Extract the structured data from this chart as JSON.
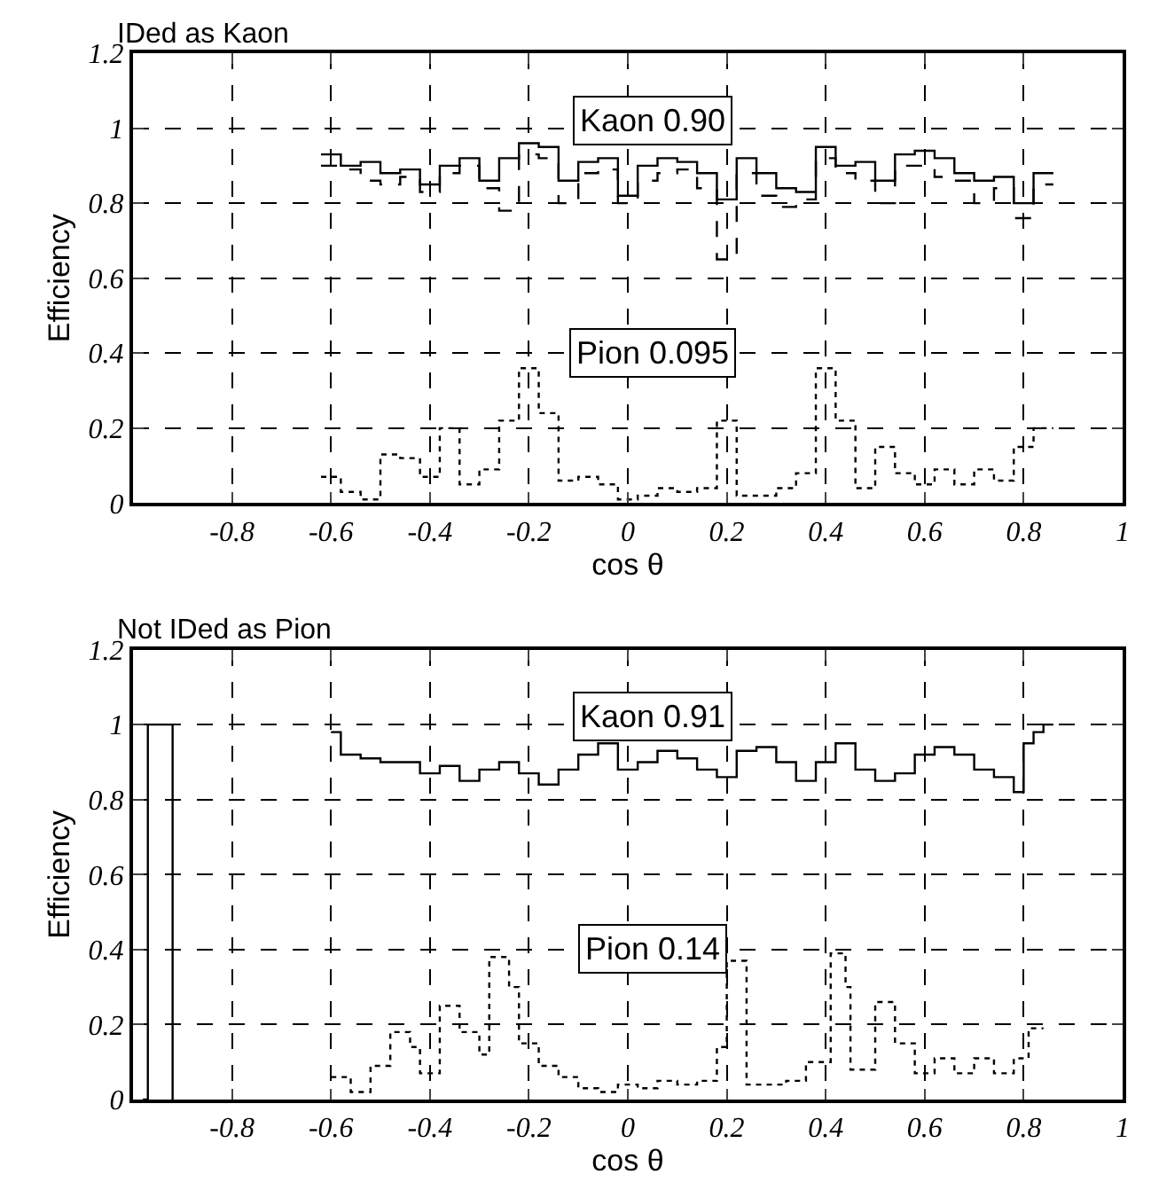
{
  "chart_data": [
    {
      "type": "step",
      "title": "IDed as Kaon",
      "xlabel": "cos θ",
      "ylabel": "Efficiency",
      "xlim": [
        -1,
        1
      ],
      "xticks": [
        -0.8,
        -0.6,
        -0.4,
        -0.2,
        0,
        0.2,
        0.4,
        0.6,
        0.8,
        1
      ],
      "ylim": [
        0,
        1.2
      ],
      "yticks": [
        0,
        0.2,
        0.4,
        0.6,
        0.8,
        1,
        1.2
      ],
      "grid": true,
      "series": [
        {
          "color": "#000000",
          "line_style": "solid",
          "x": [
            -0.62,
            -0.58,
            -0.54,
            -0.5,
            -0.46,
            -0.42,
            -0.38,
            -0.34,
            -0.3,
            -0.26,
            -0.22,
            -0.18,
            -0.14,
            -0.1,
            -0.06,
            -0.02,
            0.02,
            0.06,
            0.1,
            0.14,
            0.18,
            0.22,
            0.26,
            0.3,
            0.34,
            0.38,
            0.42,
            0.46,
            0.5,
            0.54,
            0.58,
            0.62,
            0.66,
            0.7,
            0.74,
            0.78,
            0.82,
            0.86
          ],
          "values": [
            0.93,
            0.9,
            0.91,
            0.88,
            0.89,
            0.85,
            0.9,
            0.92,
            0.86,
            0.92,
            0.96,
            0.95,
            0.86,
            0.91,
            0.92,
            0.82,
            0.9,
            0.92,
            0.91,
            0.88,
            0.81,
            0.92,
            0.88,
            0.84,
            0.83,
            0.95,
            0.9,
            0.91,
            0.86,
            0.93,
            0.94,
            0.92,
            0.88,
            0.86,
            0.87,
            0.8,
            0.88,
            0.88
          ]
        },
        {
          "color": "#000000",
          "line_style": "dashed",
          "x": [
            -0.62,
            -0.58,
            -0.54,
            -0.5,
            -0.46,
            -0.42,
            -0.38,
            -0.34,
            -0.3,
            -0.26,
            -0.22,
            -0.18,
            -0.14,
            -0.1,
            -0.06,
            -0.02,
            0.02,
            0.06,
            0.1,
            0.14,
            0.18,
            0.22,
            0.26,
            0.3,
            0.34,
            0.38,
            0.42,
            0.46,
            0.5,
            0.54,
            0.58,
            0.62,
            0.66,
            0.7,
            0.74,
            0.78,
            0.82,
            0.86
          ],
          "values": [
            0.9,
            0.89,
            0.86,
            0.85,
            0.87,
            0.83,
            0.88,
            0.9,
            0.84,
            0.78,
            0.93,
            0.92,
            0.8,
            0.88,
            0.89,
            0.8,
            0.86,
            0.88,
            0.89,
            0.84,
            0.65,
            0.88,
            0.82,
            0.79,
            0.81,
            0.92,
            0.88,
            0.86,
            0.8,
            0.9,
            0.9,
            0.87,
            0.86,
            0.8,
            0.84,
            0.76,
            0.85,
            0.85
          ]
        },
        {
          "color": "#000000",
          "line_style": "dotted",
          "x": [
            -0.62,
            -0.58,
            -0.54,
            -0.5,
            -0.46,
            -0.42,
            -0.38,
            -0.34,
            -0.3,
            -0.26,
            -0.22,
            -0.18,
            -0.14,
            -0.1,
            -0.06,
            -0.02,
            0.02,
            0.06,
            0.1,
            0.14,
            0.18,
            0.22,
            0.26,
            0.3,
            0.34,
            0.38,
            0.42,
            0.46,
            0.5,
            0.54,
            0.58,
            0.62,
            0.66,
            0.7,
            0.74,
            0.78,
            0.82,
            0.86
          ],
          "values": [
            0.07,
            0.03,
            0.01,
            0.13,
            0.12,
            0.07,
            0.2,
            0.05,
            0.09,
            0.22,
            0.36,
            0.24,
            0.06,
            0.07,
            0.05,
            0.01,
            0.02,
            0.04,
            0.03,
            0.04,
            0.22,
            0.02,
            0.02,
            0.04,
            0.08,
            0.36,
            0.22,
            0.04,
            0.15,
            0.08,
            0.05,
            0.09,
            0.05,
            0.09,
            0.06,
            0.15,
            0.2,
            0.2
          ]
        }
      ],
      "annotations": [
        "Kaon 0.90",
        "Pion 0.095"
      ]
    },
    {
      "type": "step",
      "title": "Not IDed as Pion",
      "xlabel": "cos θ",
      "ylabel": "Efficiency",
      "xlim": [
        -1,
        1
      ],
      "xticks": [
        -0.8,
        -0.6,
        -0.4,
        -0.2,
        0,
        0.2,
        0.4,
        0.6,
        0.8,
        1
      ],
      "ylim": [
        0,
        1.2
      ],
      "yticks": [
        0,
        0.2,
        0.4,
        0.6,
        0.8,
        1,
        1.2
      ],
      "grid": true,
      "series": [
        {
          "color": "#000000",
          "line_style": "solid",
          "x": [
            -0.98,
            -0.97,
            -0.95,
            -0.93,
            -0.92,
            -0.9,
            -0.6,
            -0.58,
            -0.54,
            -0.5,
            -0.46,
            -0.42,
            -0.38,
            -0.34,
            -0.3,
            -0.26,
            -0.22,
            -0.18,
            -0.14,
            -0.1,
            -0.06,
            -0.02,
            0.02,
            0.06,
            0.1,
            0.14,
            0.18,
            0.22,
            0.26,
            0.3,
            0.34,
            0.38,
            0.42,
            0.46,
            0.5,
            0.54,
            0.58,
            0.62,
            0.66,
            0.7,
            0.74,
            0.78,
            0.8,
            0.82,
            0.84,
            0.86
          ],
          "values": [
            0,
            1,
            1,
            1,
            0,
            null,
            0.98,
            0.92,
            0.91,
            0.9,
            0.9,
            0.87,
            0.89,
            0.85,
            0.88,
            0.9,
            0.87,
            0.84,
            0.88,
            0.92,
            0.95,
            0.88,
            0.9,
            0.93,
            0.91,
            0.88,
            0.86,
            0.93,
            0.94,
            0.9,
            0.85,
            0.9,
            0.95,
            0.88,
            0.85,
            0.87,
            0.92,
            0.94,
            0.92,
            0.88,
            0.86,
            0.82,
            0.95,
            0.98,
            1,
            1
          ]
        },
        {
          "color": "#000000",
          "line_style": "dotted",
          "x": [
            -0.6,
            -0.56,
            -0.52,
            -0.48,
            -0.44,
            -0.42,
            -0.38,
            -0.34,
            -0.3,
            -0.28,
            -0.24,
            -0.22,
            -0.18,
            -0.14,
            -0.1,
            -0.06,
            -0.02,
            0.02,
            0.06,
            0.1,
            0.14,
            0.18,
            0.2,
            0.24,
            0.28,
            0.32,
            0.36,
            0.41,
            0.44,
            0.45,
            0.5,
            0.54,
            0.58,
            0.62,
            0.66,
            0.7,
            0.74,
            0.78,
            0.81,
            0.84
          ],
          "values": [
            0.06,
            0.02,
            0.09,
            0.18,
            0.14,
            0.07,
            0.25,
            0.18,
            0.12,
            0.38,
            0.3,
            0.15,
            0.09,
            0.06,
            0.03,
            0.02,
            0.04,
            0.03,
            0.05,
            0.04,
            0.05,
            0.14,
            0.37,
            0.04,
            0.04,
            0.05,
            0.1,
            0.39,
            0.3,
            0.08,
            0.26,
            0.15,
            0.07,
            0.11,
            0.07,
            0.11,
            0.07,
            0.11,
            0.19,
            0.19
          ]
        }
      ],
      "annotations": [
        "Kaon 0.91",
        "Pion 0.14"
      ]
    }
  ]
}
